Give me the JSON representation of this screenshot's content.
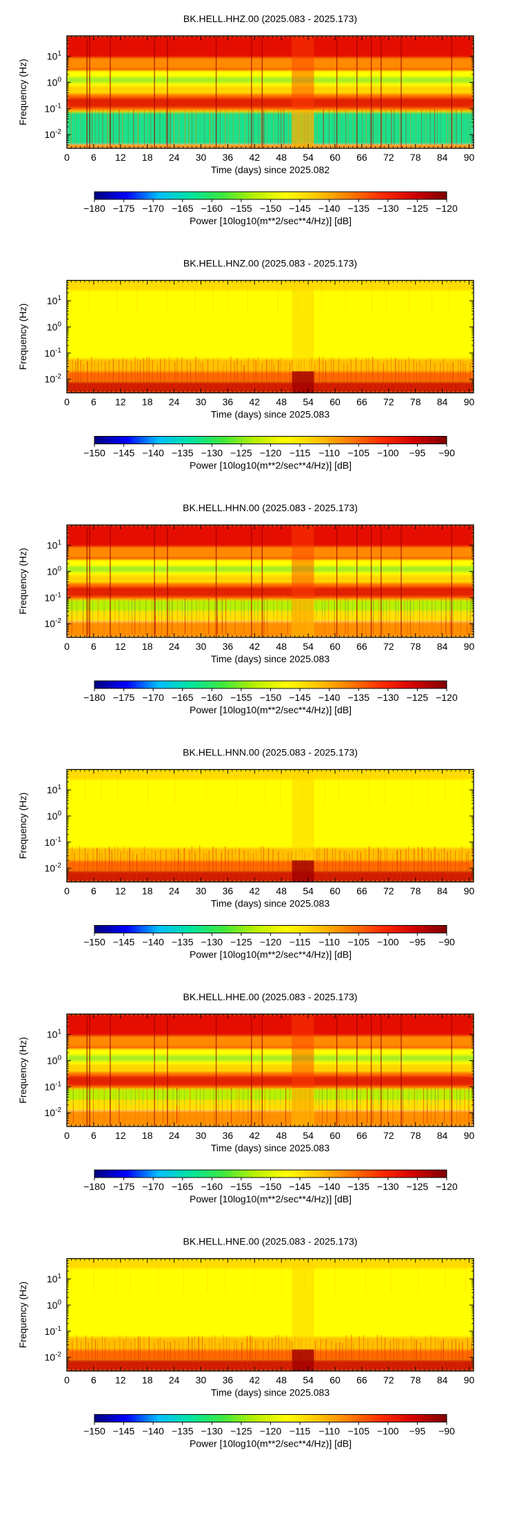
{
  "colors": {
    "spectrum": [
      "#00007f",
      "#0000ff",
      "#00bfff",
      "#00e5a0",
      "#3ee83e",
      "#b8f000",
      "#ffff00",
      "#ffc400",
      "#ff7a00",
      "#ff2a00",
      "#d00000",
      "#800000"
    ]
  },
  "chart_data": [
    {
      "type": "heatmap",
      "title": "BK.HELL.HHZ.00 (2025.083 - 2025.173)",
      "xlabel": "Time (days) since 2025.082",
      "ylabel": "Frequency (Hz)",
      "x_ticks": [
        "0",
        "6",
        "12",
        "18",
        "24",
        "30",
        "36",
        "42",
        "48",
        "54",
        "60",
        "66",
        "72",
        "78",
        "84",
        "90"
      ],
      "xlim": [
        0,
        91
      ],
      "y_scale": "log",
      "y_ticks": [
        {
          "base": "10",
          "exp": "1"
        },
        {
          "base": "10",
          "exp": "0"
        },
        {
          "base": "10",
          "exp": "-1"
        },
        {
          "base": "10",
          "exp": "-2"
        }
      ],
      "ylim": [
        0.003,
        60
      ],
      "colorbar": {
        "ticks": [
          "−180",
          "−175",
          "−170",
          "−165",
          "−160",
          "−155",
          "−150",
          "−145",
          "−140",
          "−135",
          "−130",
          "−125",
          "−120"
        ],
        "min": -180,
        "max": -120,
        "label": "Power [10log10(m**2/sec**4/Hz)] [dB]",
        "colormap": "jet"
      },
      "style": "hh",
      "grid": false
    },
    {
      "type": "heatmap",
      "title": "BK.HELL.HNZ.00 (2025.083 - 2025.173)",
      "xlabel": "Time (days) since 2025.083",
      "ylabel": "Frequency (Hz)",
      "x_ticks": [
        "0",
        "6",
        "12",
        "18",
        "24",
        "30",
        "36",
        "42",
        "48",
        "54",
        "60",
        "66",
        "72",
        "78",
        "84",
        "90"
      ],
      "xlim": [
        0,
        91
      ],
      "y_scale": "log",
      "y_ticks": [
        {
          "base": "10",
          "exp": "1"
        },
        {
          "base": "10",
          "exp": "0"
        },
        {
          "base": "10",
          "exp": "-1"
        },
        {
          "base": "10",
          "exp": "-2"
        }
      ],
      "ylim": [
        0.003,
        60
      ],
      "colorbar": {
        "ticks": [
          "−150",
          "−145",
          "−140",
          "−135",
          "−130",
          "−125",
          "−120",
          "−115",
          "−110",
          "−105",
          "−100",
          "−95",
          "−90"
        ],
        "min": -150,
        "max": -90,
        "label": "Power [10log10(m**2/sec**4/Hz)] [dB]",
        "colormap": "jet"
      },
      "style": "hn",
      "grid": false
    },
    {
      "type": "heatmap",
      "title": "BK.HELL.HHN.00 (2025.083 - 2025.173)",
      "xlabel": "Time (days) since 2025.083",
      "ylabel": "Frequency (Hz)",
      "x_ticks": [
        "0",
        "6",
        "12",
        "18",
        "24",
        "30",
        "36",
        "42",
        "48",
        "54",
        "60",
        "66",
        "72",
        "78",
        "84",
        "90"
      ],
      "xlim": [
        0,
        91
      ],
      "y_scale": "log",
      "y_ticks": [
        {
          "base": "10",
          "exp": "1"
        },
        {
          "base": "10",
          "exp": "0"
        },
        {
          "base": "10",
          "exp": "-1"
        },
        {
          "base": "10",
          "exp": "-2"
        }
      ],
      "ylim": [
        0.003,
        60
      ],
      "colorbar": {
        "ticks": [
          "−180",
          "−175",
          "−170",
          "−165",
          "−160",
          "−155",
          "−150",
          "−145",
          "−140",
          "−135",
          "−130",
          "−125",
          "−120"
        ],
        "min": -180,
        "max": -120,
        "label": "Power [10log10(m**2/sec**4/Hz)] [dB]",
        "colormap": "jet"
      },
      "style": "hh",
      "grid": false
    },
    {
      "type": "heatmap",
      "title": "BK.HELL.HNN.00 (2025.083 - 2025.173)",
      "xlabel": "Time (days) since 2025.083",
      "ylabel": "Frequency (Hz)",
      "x_ticks": [
        "0",
        "6",
        "12",
        "18",
        "24",
        "30",
        "36",
        "42",
        "48",
        "54",
        "60",
        "66",
        "72",
        "78",
        "84",
        "90"
      ],
      "xlim": [
        0,
        91
      ],
      "y_scale": "log",
      "y_ticks": [
        {
          "base": "10",
          "exp": "1"
        },
        {
          "base": "10",
          "exp": "0"
        },
        {
          "base": "10",
          "exp": "-1"
        },
        {
          "base": "10",
          "exp": "-2"
        }
      ],
      "ylim": [
        0.003,
        60
      ],
      "colorbar": {
        "ticks": [
          "−150",
          "−145",
          "−140",
          "−135",
          "−130",
          "−125",
          "−120",
          "−115",
          "−110",
          "−105",
          "−100",
          "−95",
          "−90"
        ],
        "min": -150,
        "max": -90,
        "label": "Power [10log10(m**2/sec**4/Hz)] [dB]",
        "colormap": "jet"
      },
      "style": "hn",
      "grid": false
    },
    {
      "type": "heatmap",
      "title": "BK.HELL.HHE.00 (2025.083 - 2025.173)",
      "xlabel": "Time (days) since 2025.083",
      "ylabel": "Frequency (Hz)",
      "x_ticks": [
        "0",
        "6",
        "12",
        "18",
        "24",
        "30",
        "36",
        "42",
        "48",
        "54",
        "60",
        "66",
        "72",
        "78",
        "84",
        "90"
      ],
      "xlim": [
        0,
        91
      ],
      "y_scale": "log",
      "y_ticks": [
        {
          "base": "10",
          "exp": "1"
        },
        {
          "base": "10",
          "exp": "0"
        },
        {
          "base": "10",
          "exp": "-1"
        },
        {
          "base": "10",
          "exp": "-2"
        }
      ],
      "ylim": [
        0.003,
        60
      ],
      "colorbar": {
        "ticks": [
          "−180",
          "−175",
          "−170",
          "−165",
          "−160",
          "−155",
          "−150",
          "−145",
          "−140",
          "−135",
          "−130",
          "−125",
          "−120"
        ],
        "min": -180,
        "max": -120,
        "label": "Power [10log10(m**2/sec**4/Hz)] [dB]",
        "colormap": "jet"
      },
      "style": "hh",
      "grid": false
    },
    {
      "type": "heatmap",
      "title": "BK.HELL.HNE.00 (2025.083 - 2025.173)",
      "xlabel": "Time (days) since 2025.083",
      "ylabel": "Frequency (Hz)",
      "x_ticks": [
        "0",
        "6",
        "12",
        "18",
        "24",
        "30",
        "36",
        "42",
        "48",
        "54",
        "60",
        "66",
        "72",
        "78",
        "84",
        "90"
      ],
      "xlim": [
        0,
        91
      ],
      "y_scale": "log",
      "y_ticks": [
        {
          "base": "10",
          "exp": "1"
        },
        {
          "base": "10",
          "exp": "0"
        },
        {
          "base": "10",
          "exp": "-1"
        },
        {
          "base": "10",
          "exp": "-2"
        }
      ],
      "ylim": [
        0.003,
        60
      ],
      "colorbar": {
        "ticks": [
          "−150",
          "−145",
          "−140",
          "−135",
          "−130",
          "−125",
          "−120",
          "−115",
          "−110",
          "−105",
          "−100",
          "−95",
          "−90"
        ],
        "min": -150,
        "max": -90,
        "label": "Power [10log10(m**2/sec**4/Hz)] [dB]",
        "colormap": "jet"
      },
      "style": "hn",
      "grid": false
    }
  ]
}
